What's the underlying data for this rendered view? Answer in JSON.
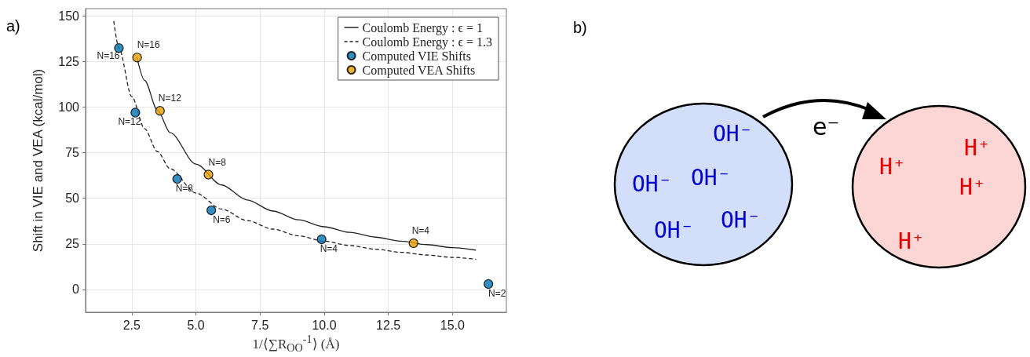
{
  "chart_data": [
    {
      "type": "scatter",
      "title": "a)",
      "xlabel": "1/⟨∑R$_{OO}$$^{-1}$⟩ (Å)",
      "ylabel": "Shift in VIE and VEA (kcal/mol)",
      "xlim": [
        0.7,
        17.1
      ],
      "ylim": [
        -12.5,
        154
      ],
      "annotations": [
        {
          "text": "N=16",
          "x": 2.0,
          "y": 132.4
        },
        {
          "text": "N=12",
          "x": 2.64,
          "y": 97
        },
        {
          "text": "N=8",
          "x": 4.27,
          "y": 60.6
        },
        {
          "text": "N=6",
          "x": 5.6,
          "y": 43.4
        },
        {
          "text": "N=4",
          "x": 9.9,
          "y": 27.5
        },
        {
          "text": "N=2",
          "x": 16.4,
          "y": 3
        },
        {
          "text": "N=16",
          "x": 2.71,
          "y": 127.2
        },
        {
          "text": "N=12",
          "x": 3.6,
          "y": 98
        },
        {
          "text": "N=8",
          "x": 5.49,
          "y": 63
        },
        {
          "text": "N=4",
          "x": 13.48,
          "y": 25.4
        }
      ],
      "xticks": [
        {
          "value": 2.5,
          "label": "2.5"
        },
        {
          "value": 5,
          "label": "5.0"
        },
        {
          "value": 7.5,
          "label": "7.5"
        },
        {
          "value": 10,
          "label": "10.0"
        },
        {
          "value": 12.5,
          "label": "12.5"
        },
        {
          "value": 15,
          "label": "15.0"
        }
      ],
      "yticks": [
        0,
        25,
        50,
        75,
        100,
        125,
        150
      ],
      "grid": true,
      "legend": "top right",
      "series": [
        {
          "type": "line",
          "name": "Coulomb Energy : ϵ = 1",
          "color": "#222222",
          "marker": "none",
          "line_style": "solid",
          "x": [
            2.7,
            3,
            3.5,
            4,
            5,
            6,
            7,
            8,
            9,
            10,
            11,
            12,
            13,
            14,
            15,
            15.9
          ],
          "values": [
            127.4,
            114.7,
            98.3,
            86,
            68.8,
            57.3,
            49.1,
            43,
            38.2,
            34.4,
            31.3,
            28.7,
            26.5,
            24.6,
            22.9,
            21.6
          ]
        },
        {
          "type": "line",
          "name": "Coulomb Energy : ϵ = 1.3",
          "color": "#222222",
          "marker": "none",
          "line_style": "dashed",
          "x": [
            1.8,
            2,
            2.5,
            3,
            3.5,
            4,
            5,
            6,
            7,
            8,
            9,
            10,
            11,
            12,
            13,
            14,
            15,
            15.9
          ],
          "values": [
            147,
            132.3,
            105.8,
            88.2,
            75.6,
            66.2,
            52.9,
            44.1,
            37.8,
            33.1,
            29.4,
            26.5,
            24.1,
            22.1,
            20.4,
            18.9,
            17.6,
            16.6
          ]
        },
        {
          "type": "scatter",
          "name": "Computed VIE Shifts",
          "color": "#0072b2",
          "marker": "circle",
          "x": [
            2.0,
            2.64,
            4.27,
            5.6,
            9.9,
            16.4
          ],
          "values": [
            132.4,
            97,
            60.6,
            43.4,
            27.5,
            3
          ]
        },
        {
          "type": "scatter",
          "name": "Computed VEA Shifts",
          "color": "#e69f00",
          "marker": "circle",
          "x": [
            2.71,
            3.6,
            5.49,
            13.48
          ],
          "values": [
            127.2,
            98,
            63,
            25.4
          ]
        }
      ]
    },
    {
      "type": "other",
      "title": "b)",
      "annotations": [
        "OH⁻",
        "OH⁻",
        "OH⁻",
        "OH⁻",
        "OH⁻",
        "e⁻",
        "H⁺",
        "H⁺",
        "H⁺",
        "H⁺"
      ]
    }
  ]
}
